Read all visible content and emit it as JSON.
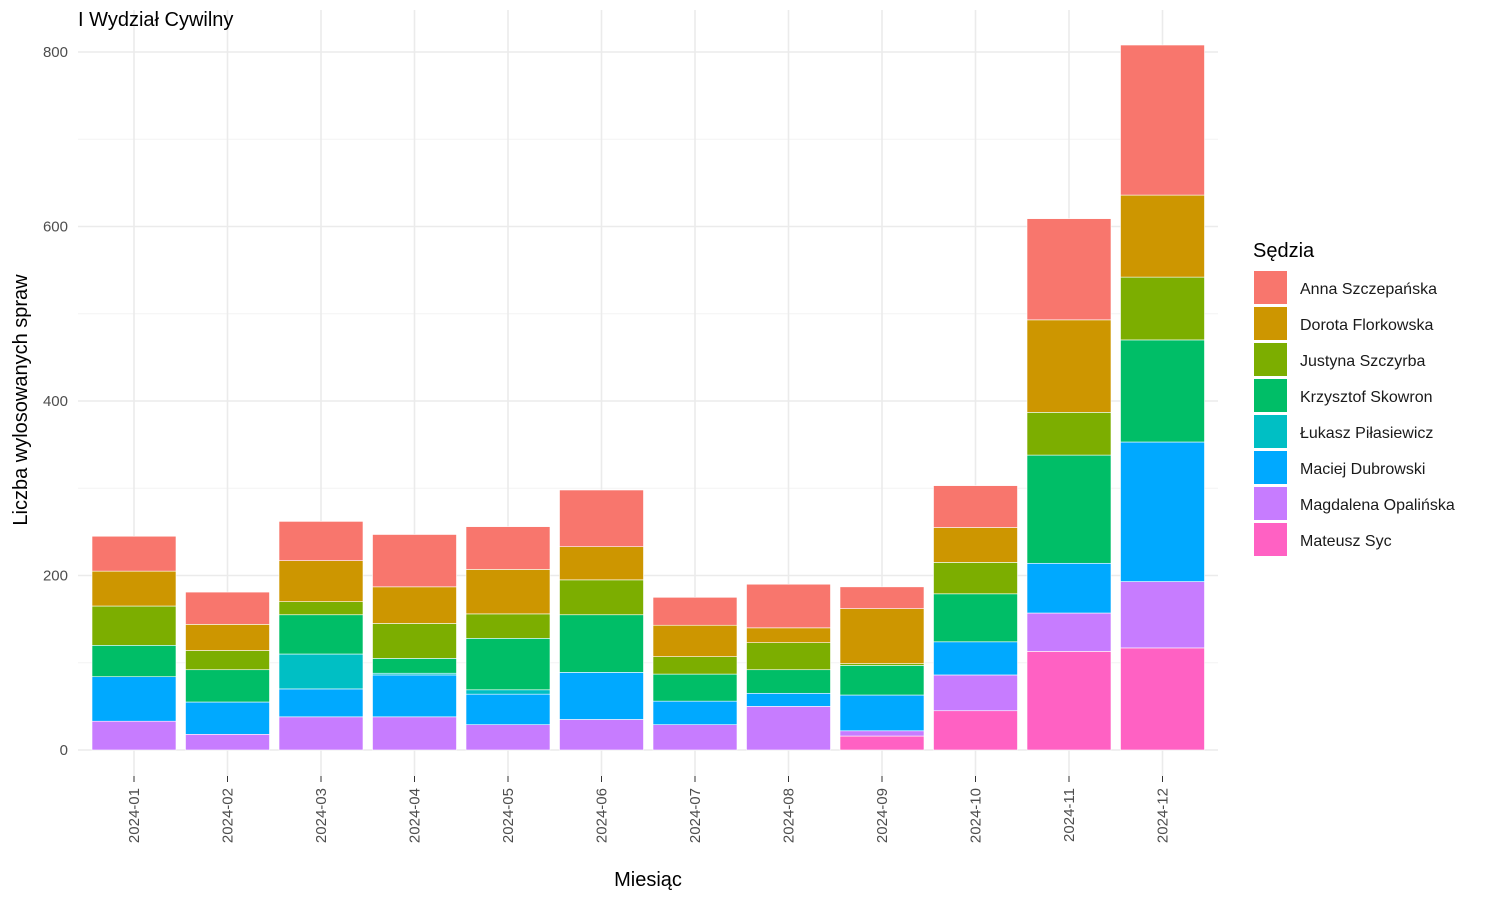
{
  "chart_data": {
    "type": "bar",
    "stacked": true,
    "title": "I Wydział Cywilny",
    "xlabel": "Miesiąc",
    "ylabel": "Liczba wylosowanych spraw",
    "ylim": [
      -30,
      820
    ],
    "yticks": [
      0,
      200,
      400,
      600,
      800
    ],
    "grid": true,
    "legend_title": "Sędzia",
    "legend_position": "right",
    "categories": [
      "2024-01",
      "2024-02",
      "2024-03",
      "2024-04",
      "2024-05",
      "2024-06",
      "2024-07",
      "2024-08",
      "2024-09",
      "2024-10",
      "2024-11",
      "2024-12"
    ],
    "series": [
      {
        "name": "Mateusz Syc",
        "color": "#FF61C3",
        "values": [
          0,
          0,
          0,
          0,
          0,
          0,
          0,
          0,
          16,
          45,
          113,
          117
        ]
      },
      {
        "name": "Magdalena Opalińska",
        "color": "#C77CFF",
        "values": [
          33,
          18,
          38,
          38,
          29,
          35,
          29,
          50,
          6,
          41,
          44,
          76
        ]
      },
      {
        "name": "Maciej Dubrowski",
        "color": "#00A9FF",
        "values": [
          51,
          37,
          32,
          48,
          35,
          54,
          27,
          15,
          41,
          38,
          57,
          160
        ]
      },
      {
        "name": "Łukasz Piłasiewicz",
        "color": "#00BFC4",
        "values": [
          0,
          0,
          40,
          2,
          5,
          0,
          0,
          0,
          0,
          0,
          0,
          0
        ]
      },
      {
        "name": "Krzysztof Skowron",
        "color": "#00BE67",
        "values": [
          36,
          37,
          45,
          17,
          59,
          66,
          31,
          27,
          34,
          55,
          124,
          117
        ]
      },
      {
        "name": "Justyna Szczyrba",
        "color": "#7CAE00",
        "values": [
          45,
          22,
          15,
          40,
          28,
          40,
          20,
          31,
          2,
          36,
          49,
          72
        ]
      },
      {
        "name": "Dorota Florkowska",
        "color": "#CD9600",
        "values": [
          40,
          30,
          47,
          42,
          51,
          38,
          36,
          17,
          63,
          40,
          106,
          94
        ]
      },
      {
        "name": "Anna Szczepańska",
        "color": "#F8766D",
        "values": [
          40,
          37,
          45,
          60,
          49,
          65,
          32,
          50,
          25,
          48,
          116,
          172
        ]
      }
    ]
  }
}
